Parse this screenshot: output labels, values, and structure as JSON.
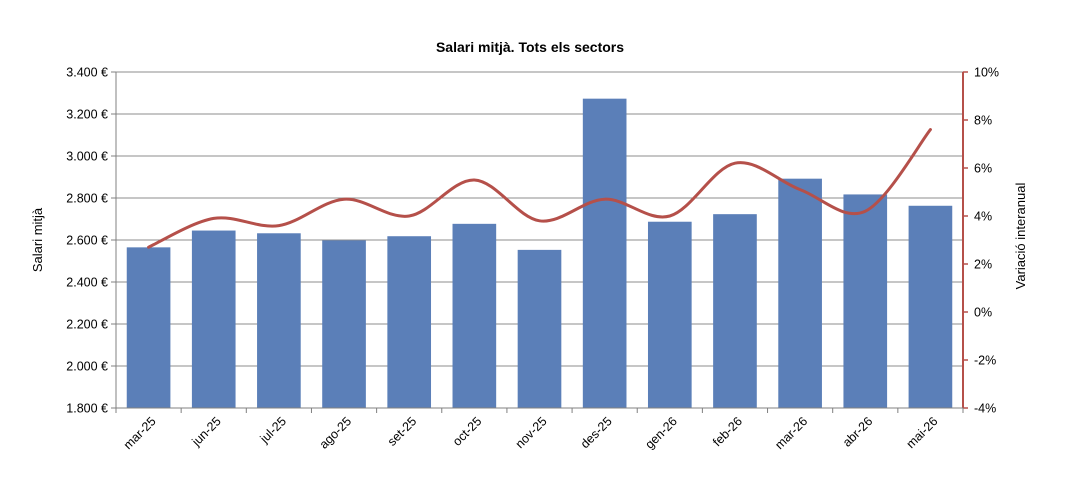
{
  "chart_data": {
    "type": "bar",
    "title": "Salari mitjà. Tots els sectors",
    "ylabel": "Salari mitjà",
    "y2label": "Variació interanual",
    "categories": [
      "mar-25",
      "jun-25",
      "jul-25",
      "ago-25",
      "set-25",
      "oct-25",
      "nov-25",
      "des-25",
      "gen-26",
      "feb-26",
      "mar-26",
      "abr-26",
      "mai-26"
    ],
    "series": [
      {
        "name": "Salari mitjà",
        "type": "bar",
        "axis": "left",
        "values": [
          2565,
          2645,
          2632,
          2598,
          2618,
          2677,
          2553,
          3273,
          2687,
          2723,
          2892,
          2817,
          2763
        ]
      },
      {
        "name": "Variació interanual",
        "type": "line",
        "axis": "right",
        "values": [
          2.7,
          3.9,
          3.6,
          4.7,
          4.0,
          5.5,
          3.8,
          4.7,
          4.0,
          6.2,
          5.1,
          4.2,
          7.6
        ]
      }
    ],
    "ylim": [
      1800,
      3400
    ],
    "y_ticks": [
      1800,
      2000,
      2200,
      2400,
      2600,
      2800,
      3000,
      3200,
      3400
    ],
    "y_tick_labels": [
      "1.800 €",
      "2.000 €",
      "2.200 €",
      "2.400 €",
      "2.600 €",
      "2.800 €",
      "3.000 €",
      "3.200 €",
      "3.400 €"
    ],
    "y2lim": [
      -4,
      10
    ],
    "y2_ticks": [
      -4,
      -2,
      0,
      2,
      4,
      6,
      8,
      10
    ],
    "y2_tick_labels": [
      "-4%",
      "-2%",
      "0%",
      "2%",
      "4%",
      "6%",
      "8%",
      "10%"
    ],
    "grid": "horizontal",
    "legend": "none",
    "colors": {
      "bar": "#5b7fb8",
      "line": "#b5504a",
      "grid": "#8c8c8c",
      "axis": "#808080"
    }
  }
}
